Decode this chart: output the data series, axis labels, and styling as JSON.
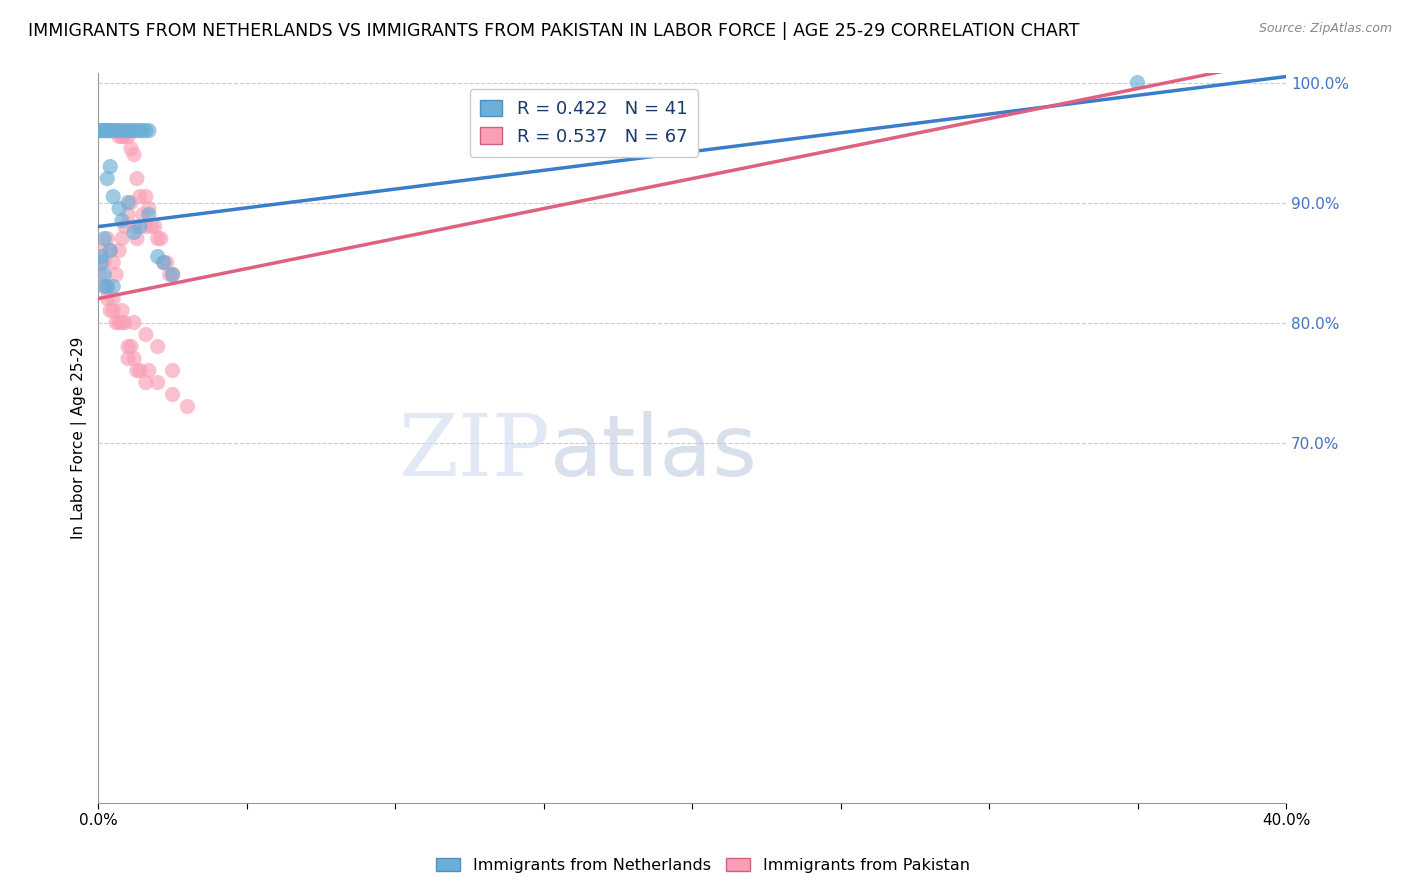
{
  "title": "IMMIGRANTS FROM NETHERLANDS VS IMMIGRANTS FROM PAKISTAN IN LABOR FORCE | AGE 25-29 CORRELATION CHART",
  "source": "Source: ZipAtlas.com",
  "ylabel": "In Labor Force | Age 25-29",
  "xlim": [
    0.0,
    0.4
  ],
  "ylim": [
    0.4,
    1.008
  ],
  "netherlands_color": "#6baed6",
  "pakistan_color": "#fa9fb5",
  "netherlands_line_color": "#3a7dc9",
  "pakistan_line_color": "#e06080",
  "netherlands_R": 0.422,
  "netherlands_N": 41,
  "pakistan_R": 0.537,
  "pakistan_N": 67,
  "yticks_right": [
    1.0,
    0.9,
    0.8,
    0.7
  ],
  "ytick_right_labels": [
    "100.0%",
    "90.0%",
    "80.0%",
    "70.0%"
  ],
  "right_tick_color": "#4472c4",
  "nl_x": [
    0.0,
    0.001,
    0.001,
    0.002,
    0.003,
    0.003,
    0.004,
    0.005,
    0.006,
    0.007,
    0.008,
    0.009,
    0.01,
    0.011,
    0.012,
    0.013,
    0.014,
    0.015,
    0.016,
    0.017,
    0.003,
    0.004,
    0.005,
    0.007,
    0.008,
    0.01,
    0.012,
    0.014,
    0.017,
    0.02,
    0.022,
    0.025,
    0.001,
    0.002,
    0.001,
    0.002,
    0.003,
    0.004,
    0.005,
    0.35,
    0.002
  ],
  "nl_y": [
    0.96,
    0.96,
    0.96,
    0.96,
    0.96,
    0.96,
    0.96,
    0.96,
    0.96,
    0.96,
    0.96,
    0.96,
    0.96,
    0.96,
    0.96,
    0.96,
    0.96,
    0.96,
    0.96,
    0.96,
    0.92,
    0.93,
    0.905,
    0.895,
    0.885,
    0.9,
    0.875,
    0.88,
    0.89,
    0.855,
    0.85,
    0.84,
    0.855,
    0.87,
    0.85,
    0.84,
    0.83,
    0.86,
    0.83,
    1.0,
    0.83
  ],
  "pk_x": [
    0.0,
    0.001,
    0.001,
    0.002,
    0.002,
    0.003,
    0.003,
    0.004,
    0.004,
    0.005,
    0.005,
    0.006,
    0.006,
    0.007,
    0.007,
    0.008,
    0.008,
    0.009,
    0.009,
    0.01,
    0.01,
    0.011,
    0.011,
    0.012,
    0.012,
    0.013,
    0.013,
    0.014,
    0.015,
    0.016,
    0.016,
    0.017,
    0.018,
    0.019,
    0.02,
    0.021,
    0.022,
    0.023,
    0.024,
    0.025,
    0.001,
    0.002,
    0.003,
    0.004,
    0.005,
    0.006,
    0.007,
    0.008,
    0.009,
    0.01,
    0.011,
    0.012,
    0.014,
    0.017,
    0.02,
    0.025,
    0.03,
    0.025,
    0.003,
    0.005,
    0.008,
    0.012,
    0.016,
    0.02,
    0.01,
    0.013,
    0.016
  ],
  "pk_y": [
    0.96,
    0.96,
    0.86,
    0.96,
    0.85,
    0.96,
    0.87,
    0.96,
    0.86,
    0.96,
    0.85,
    0.96,
    0.84,
    0.955,
    0.86,
    0.955,
    0.87,
    0.955,
    0.88,
    0.955,
    0.89,
    0.945,
    0.9,
    0.94,
    0.88,
    0.92,
    0.87,
    0.905,
    0.89,
    0.905,
    0.88,
    0.895,
    0.88,
    0.88,
    0.87,
    0.87,
    0.85,
    0.85,
    0.84,
    0.84,
    0.84,
    0.83,
    0.82,
    0.81,
    0.81,
    0.8,
    0.8,
    0.8,
    0.8,
    0.78,
    0.78,
    0.77,
    0.76,
    0.76,
    0.75,
    0.74,
    0.73,
    0.76,
    0.83,
    0.82,
    0.81,
    0.8,
    0.79,
    0.78,
    0.77,
    0.76,
    0.75
  ],
  "nl_trend_x0": 0.0,
  "nl_trend_y0": 0.88,
  "nl_trend_x1": 0.4,
  "nl_trend_y1": 1.005,
  "pk_trend_x0": 0.0,
  "pk_trend_y0": 0.82,
  "pk_trend_x1": 0.4,
  "pk_trend_y1": 1.02
}
